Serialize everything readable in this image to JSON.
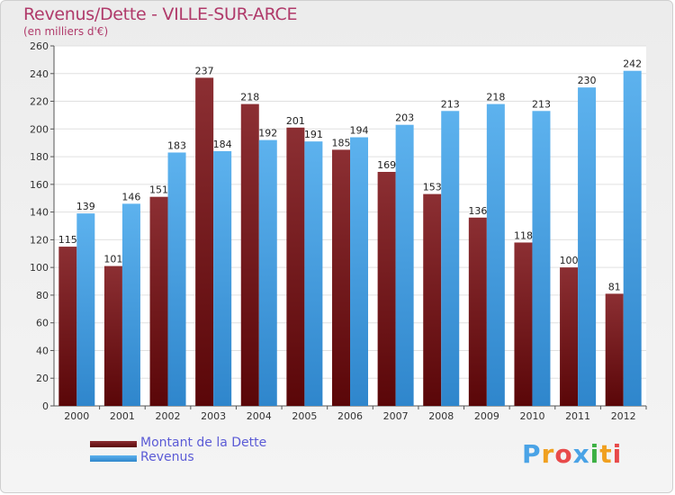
{
  "chart_data": {
    "type": "bar",
    "title": "Revenus/Dette - VILLE-SUR-ARCE",
    "subtitle": "(en milliers d'€)",
    "categories": [
      "2000",
      "2001",
      "2002",
      "2003",
      "2004",
      "2005",
      "2006",
      "2007",
      "2008",
      "2009",
      "2010",
      "2011",
      "2012"
    ],
    "series": [
      {
        "name": "Montant de la Dette",
        "values": [
          115,
          101,
          151,
          237,
          218,
          201,
          185,
          169,
          153,
          136,
          118,
          100,
          81
        ],
        "color": "#7a1e22"
      },
      {
        "name": "Revenus",
        "values": [
          139,
          146,
          183,
          184,
          192,
          191,
          194,
          203,
          213,
          218,
          213,
          230,
          242
        ],
        "color": "#4aa3e6"
      }
    ],
    "ylim": [
      0,
      260
    ],
    "yticks": [
      0,
      20,
      40,
      60,
      80,
      100,
      120,
      140,
      160,
      180,
      200,
      220,
      240,
      260
    ],
    "grid": true,
    "legend": "bottom-left"
  },
  "brand": {
    "letters": [
      "P",
      "r",
      "o",
      "x",
      "i",
      "t",
      "i"
    ],
    "colors": [
      "#4aa3e6",
      "#f0a020",
      "#e84a4a",
      "#4aa3e6",
      "#3cb043",
      "#f0a020",
      "#e84a4a"
    ]
  }
}
